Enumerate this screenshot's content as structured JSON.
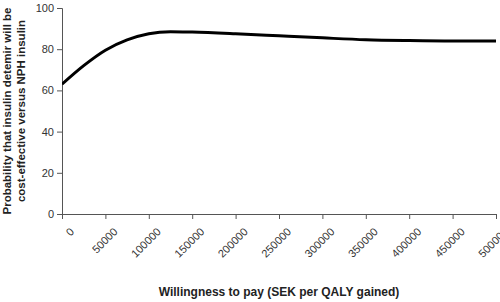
{
  "chart_data": {
    "type": "line",
    "xlabel": "Willingness to pay (SEK per QALY gained)",
    "ylabel": [
      "Probability that insulin detemir will be",
      "cost-effective versus NPH insulin"
    ],
    "x": [
      0,
      25000,
      50000,
      75000,
      100000,
      125000,
      150000,
      200000,
      250000,
      300000,
      350000,
      400000,
      450000,
      500000
    ],
    "series": [
      {
        "name": null,
        "color": "#000000",
        "values": [
          63,
          72,
          79.5,
          84.5,
          87.5,
          88.5,
          88.3,
          87.5,
          86.5,
          85.5,
          84.6,
          84.2,
          84,
          84
        ]
      }
    ],
    "xlim": [
      0,
      500000
    ],
    "xticks": [
      0,
      50000,
      100000,
      150000,
      200000,
      250000,
      300000,
      350000,
      400000,
      450000,
      500000
    ],
    "ylim": [
      0,
      100
    ],
    "yticks": [
      0,
      20,
      40,
      60,
      80,
      100
    ],
    "grid": false
  }
}
